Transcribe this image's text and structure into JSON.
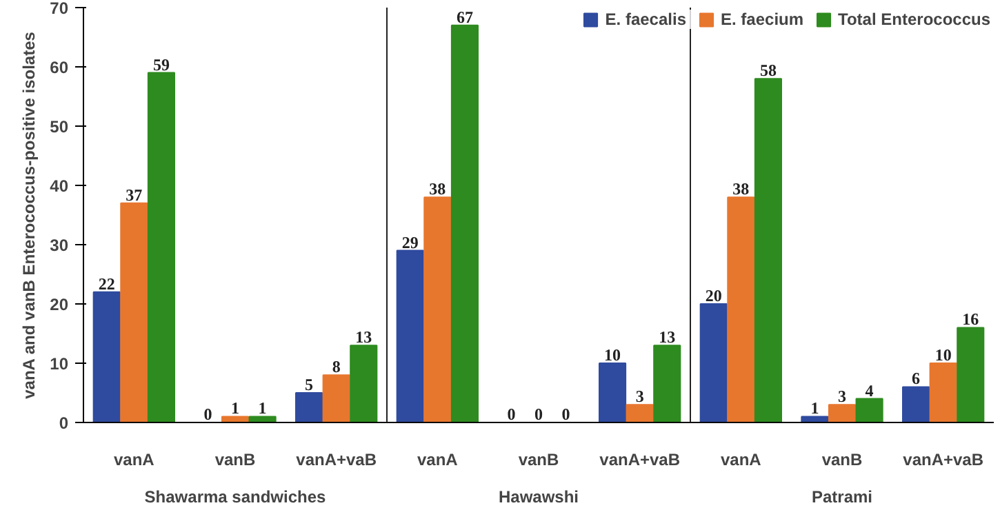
{
  "chart_data": {
    "type": "bar",
    "ylabel": "vanA and vanB Enterococcus-positive isolates",
    "categories": [
      "vanA",
      "vanB",
      "vanA+vaB",
      "vanA",
      "vanB",
      "vanA+vaB",
      "vanA",
      "vanB",
      "vanA+vaB"
    ],
    "series": [
      {
        "name": "E. faecalis",
        "color": "#2f4b9f",
        "values": [
          22,
          0,
          5,
          29,
          0,
          10,
          20,
          1,
          6
        ]
      },
      {
        "name": "E. faecium",
        "color": "#e8772e",
        "values": [
          37,
          1,
          8,
          38,
          0,
          3,
          38,
          3,
          10
        ]
      },
      {
        "name": "Total Enterococcus",
        "color": "#2e8b1f",
        "values": [
          59,
          1,
          13,
          67,
          0,
          13,
          58,
          4,
          16
        ]
      }
    ],
    "ylim": [
      0,
      70
    ],
    "yticks": [
      0,
      10,
      20,
      30,
      40,
      50,
      60,
      70
    ],
    "data_labels": true,
    "legend": "top right",
    "grid": false,
    "annotations": [
      "Shawarma sandwiches",
      "Hawawshi",
      "Patrami"
    ]
  }
}
